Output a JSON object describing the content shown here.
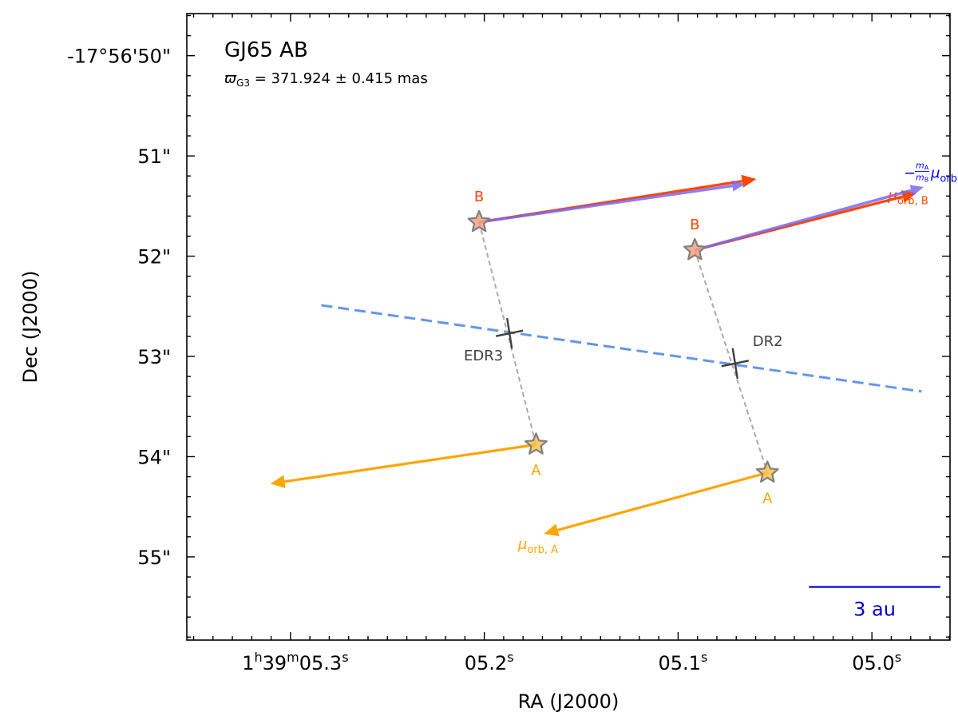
{
  "chart_data": {
    "type": "scatter",
    "title": "GJ65 AB",
    "subtitle": {
      "symbol": "ϖ",
      "subscript": "G3",
      "text": " = 371.924 ± 0.415 mas"
    },
    "xlabel": "RA (J2000)",
    "ylabel": "Dec (J2000)",
    "x_unit": "seconds of RA past 1h39m",
    "y_unit": "arcsec below -17°56'50\"",
    "xlim": [
      5.3535,
      4.9597
    ],
    "ylim": [
      55.83,
      49.58
    ],
    "x_ticks": [
      {
        "value": 5.3,
        "label": [
          "1",
          "h",
          "39",
          "m",
          "05.3",
          "s"
        ]
      },
      {
        "value": 5.2,
        "label": [
          "",
          "",
          "",
          "",
          "05.2",
          "s"
        ]
      },
      {
        "value": 5.1,
        "label": [
          "",
          "",
          "",
          "",
          "05.1",
          "s"
        ]
      },
      {
        "value": 5.0,
        "label": [
          "",
          "",
          "",
          "",
          "05.0",
          "s"
        ]
      }
    ],
    "y_ticks": [
      {
        "value": 50,
        "label": "-17°56'50\""
      },
      {
        "value": 51,
        "label": "51\""
      },
      {
        "value": 52,
        "label": "52\""
      },
      {
        "value": 53,
        "label": "53\""
      },
      {
        "value": 54,
        "label": "54\""
      },
      {
        "value": 55,
        "label": "55\""
      }
    ],
    "epochs": [
      {
        "name": "EDR3",
        "photocenter": {
          "ra": 5.187,
          "dec": 52.77
        },
        "B": {
          "ra": 5.2027,
          "dec": 51.66,
          "label": "B"
        },
        "A": {
          "ra": 5.1733,
          "dec": 53.88,
          "label": "A"
        },
        "arrow_B_orb": {
          "from": [
            5.2027,
            51.66
          ],
          "to": [
            5.0596,
            51.23
          ]
        },
        "arrow_B_massratio": {
          "from": [
            5.2027,
            51.66
          ],
          "to": [
            5.0654,
            51.28
          ]
        },
        "arrow_A_orb": {
          "from": [
            5.1733,
            53.88
          ],
          "to": [
            5.3104,
            54.27
          ]
        }
      },
      {
        "name": "DR2",
        "photocenter": {
          "ra": 5.0706,
          "dec": 53.07
        },
        "B": {
          "ra": 5.0914,
          "dec": 51.94,
          "label": "B"
        },
        "A": {
          "ra": 5.0539,
          "dec": 54.16,
          "label": "A"
        },
        "arrow_B_orb": {
          "from": [
            5.0914,
            51.94
          ],
          "to": [
            4.9769,
            51.37
          ]
        },
        "arrow_B_massratio": {
          "from": [
            5.0914,
            51.94
          ],
          "to": [
            4.9733,
            51.31
          ]
        },
        "arrow_A_orb": {
          "from": [
            5.0539,
            54.16
          ],
          "to": [
            5.1693,
            54.77
          ]
        }
      }
    ],
    "scan_line": {
      "from": [
        5.2841,
        52.49
      ],
      "to": [
        4.9744,
        53.35
      ],
      "style": "dashed"
    },
    "labels": {
      "mu_orb_A": {
        "greek": "μ",
        "sub": "orb, A",
        "ra": 5.1826,
        "dec": 54.92
      },
      "mu_orb_B": {
        "greek": "μ",
        "sub": "orb, B",
        "ra": 4.9916,
        "dec": 51.44
      },
      "mass_ratio": {
        "prefix": "−",
        "num": "m",
        "num_sub": "A",
        "den": "m",
        "den_sub": "B",
        "greek": "μ",
        "sub": "orb, A",
        "ra": 4.9836,
        "dec": 51.14
      }
    },
    "scale_bar": {
      "label": "3 au",
      "length_s": 0.0678
    },
    "colors": {
      "A": "#FFA500",
      "B": "#FF4500",
      "mass_ratio": "#7B68EE",
      "mass_ratio_text": "#0000FF",
      "scan": "#6495ED",
      "connector": "#A9A9A9",
      "star_edge": "#7F7F7F",
      "photocenter": "#404040",
      "scale": "#0000CD"
    }
  }
}
